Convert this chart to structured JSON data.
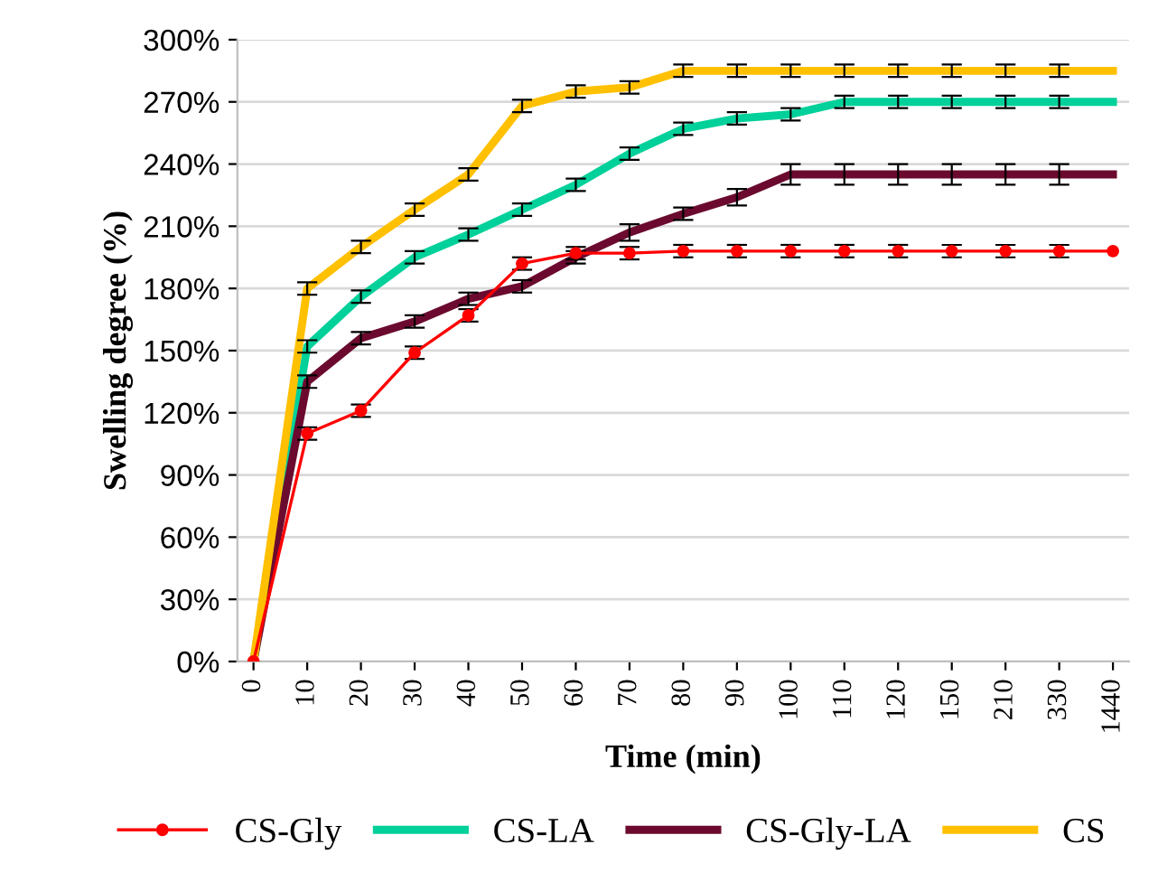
{
  "chart_data": {
    "type": "line",
    "xlabel": "Time (min)",
    "ylabel": "Swelling degree (%)",
    "categories": [
      "0",
      "10",
      "20",
      "30",
      "40",
      "50",
      "60",
      "70",
      "80",
      "90",
      "100",
      "110",
      "120",
      "150",
      "210",
      "330",
      "1440"
    ],
    "ylim": [
      0,
      300
    ],
    "yticks": [
      {
        "value": 0,
        "label": "0%"
      },
      {
        "value": 30,
        "label": "30%"
      },
      {
        "value": 60,
        "label": "60%"
      },
      {
        "value": 90,
        "label": "90%"
      },
      {
        "value": 120,
        "label": "120%"
      },
      {
        "value": 150,
        "label": "150%"
      },
      {
        "value": 180,
        "label": "180%"
      },
      {
        "value": 210,
        "label": "210%"
      },
      {
        "value": 240,
        "label": "240%"
      },
      {
        "value": 270,
        "label": "270%"
      },
      {
        "value": 300,
        "label": "300%"
      }
    ],
    "grid": "y",
    "legend": "bottom",
    "series": [
      {
        "name": "CS-Gly",
        "color": "#ff0000",
        "marker": "circle",
        "values": [
          0,
          110,
          121,
          149,
          167,
          192,
          197,
          197,
          198,
          198,
          198,
          198,
          198,
          198,
          198,
          198,
          198
        ],
        "errors": [
          null,
          3,
          3,
          3,
          3,
          3,
          3,
          3,
          3,
          3,
          3,
          3,
          3,
          3,
          3,
          3,
          null
        ]
      },
      {
        "name": "CS-LA",
        "color": "#00d09a",
        "marker": "none",
        "values": [
          0,
          152,
          176,
          195,
          206,
          218,
          230,
          245,
          257,
          262,
          264,
          270,
          270,
          270,
          270,
          270,
          270
        ],
        "errors": [
          null,
          3,
          3,
          3,
          3,
          3,
          3,
          3,
          3,
          3,
          3,
          3,
          3,
          3,
          3,
          3,
          null
        ]
      },
      {
        "name": "CS-Gly-LA",
        "color": "#6b0a2e",
        "marker": "none",
        "values": [
          0,
          135,
          156,
          164,
          175,
          181,
          195,
          207,
          216,
          224,
          235,
          235,
          235,
          235,
          235,
          235,
          235
        ],
        "errors": [
          null,
          3,
          3,
          3,
          3,
          3,
          3,
          4,
          3,
          4,
          5,
          5,
          5,
          5,
          5,
          5,
          null
        ]
      },
      {
        "name": "CS",
        "color": "#ffc000",
        "marker": "none",
        "values": [
          0,
          180,
          200,
          218,
          235,
          268,
          275,
          277,
          285,
          285,
          285,
          285,
          285,
          285,
          285,
          285,
          285
        ],
        "errors": [
          null,
          3,
          3,
          3,
          3,
          3,
          3,
          3,
          3,
          3,
          3,
          3,
          3,
          3,
          3,
          3,
          null
        ]
      }
    ]
  }
}
